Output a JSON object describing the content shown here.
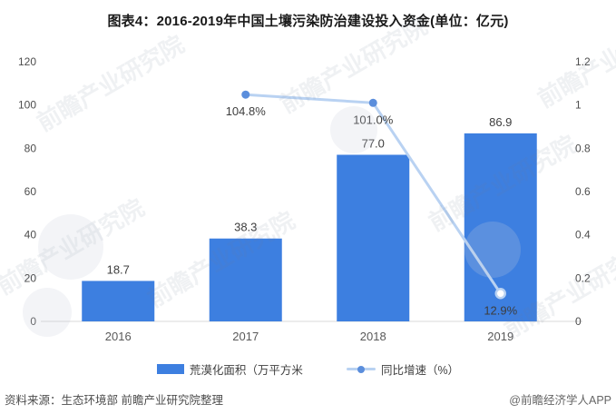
{
  "title": "图表4：2016-2019年中国土壤污染防治建设投入资金(单位：亿元)",
  "chart_data": {
    "type": "bar",
    "categories": [
      "2016",
      "2017",
      "2018",
      "2019"
    ],
    "series": [
      {
        "name": "荒漠化面积（万平方米",
        "type": "bar",
        "axis": "left",
        "values": [
          18.7,
          38.3,
          77.0,
          86.9
        ],
        "labels": [
          "18.7",
          "38.3",
          "77.0",
          "86.9"
        ],
        "color": "#3d7fe0"
      },
      {
        "name": "同比增速（%）",
        "type": "line",
        "axis": "right",
        "values": [
          null,
          1.048,
          1.01,
          0.129
        ],
        "labels": [
          "",
          "104.8%",
          "101.0%",
          "12.9%"
        ],
        "line_color": "#b9d2f2",
        "marker_color": "#5b8edc",
        "last_marker_style": "open"
      }
    ],
    "left_axis": {
      "min": 0,
      "max": 120,
      "ticks": [
        0,
        20,
        40,
        60,
        80,
        100,
        120
      ]
    },
    "right_axis": {
      "min": 0,
      "max": 1.2,
      "ticks": [
        "0",
        "0.2",
        "0.4",
        "0.6",
        "0.8",
        "1",
        "1.2"
      ]
    },
    "grid": false,
    "legend_position": "bottom",
    "title": "图表4：2016-2019年中国土壤污染防治建设投入资金(单位：亿元)",
    "xlabel": "",
    "ylabel_left": "",
    "ylabel_right": ""
  },
  "legend": {
    "items": [
      {
        "label": "荒漠化面积（万平方米",
        "swatch": "bar"
      },
      {
        "label": "同比增速（%）",
        "swatch": "line"
      }
    ]
  },
  "footer": {
    "source": "资料来源：生态环境部 前瞻产业研究院整理",
    "credit": "@前瞻经济学人APP"
  },
  "watermark": {
    "text": "前瞻产业研究院"
  }
}
